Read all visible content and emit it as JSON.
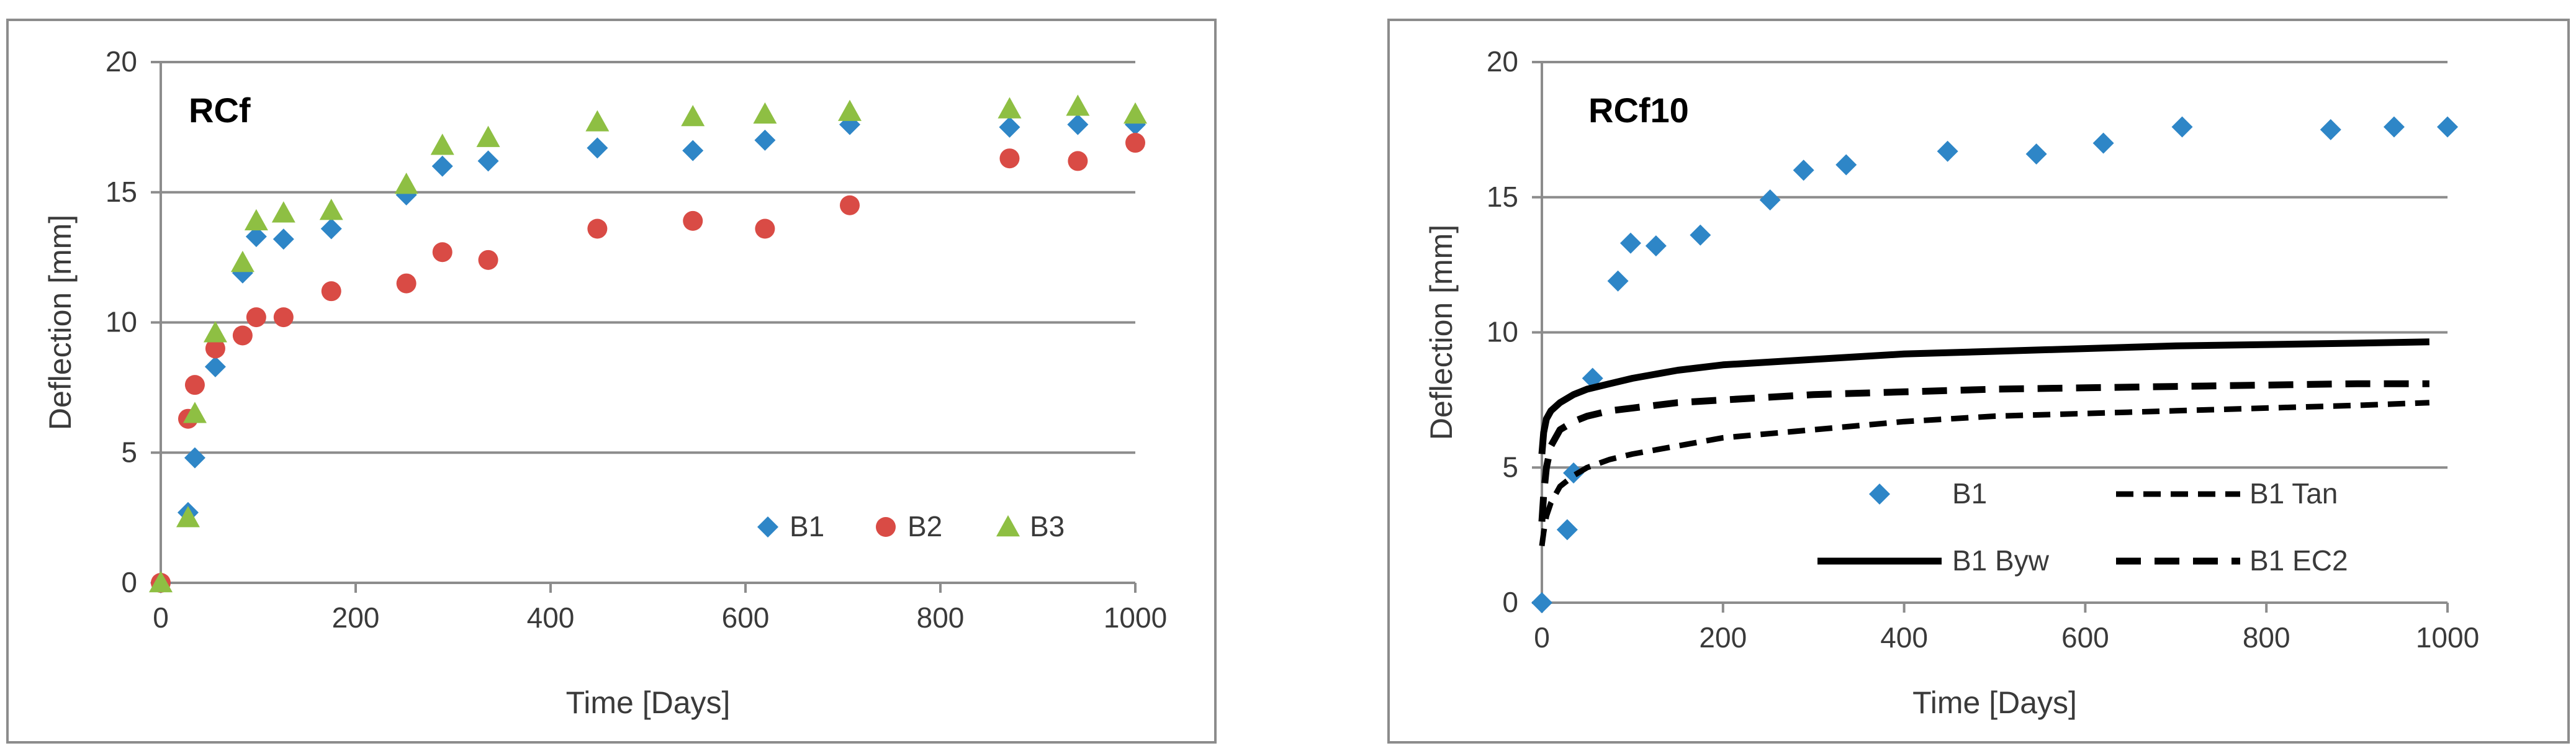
{
  "colors": {
    "B1": "#2e86c7",
    "B2": "#d94b45",
    "B3": "#8ebf43",
    "grid": "#8c8c8c",
    "text": "#3a3a3a",
    "model": "#000000"
  },
  "chart_data": [
    {
      "type": "scatter",
      "title": "RCf",
      "xlabel": "Time [Days]",
      "ylabel": "Deflection [mm]",
      "xlim": [
        0,
        1000
      ],
      "ylim": [
        0,
        20
      ],
      "xticks": [
        "0",
        "200",
        "400",
        "600",
        "800",
        "1000"
      ],
      "yticks": [
        "0",
        "5",
        "10",
        "15",
        "20"
      ],
      "legend_position": "bottom-right",
      "series": [
        {
          "name": "B1",
          "marker": "diamond",
          "color": "#2e86c7",
          "x": [
            0,
            28,
            35,
            56,
            84,
            98,
            126,
            175,
            252,
            289,
            336,
            448,
            546,
            620,
            707,
            871,
            941,
            1000
          ],
          "y": [
            0,
            2.7,
            4.8,
            8.3,
            11.9,
            13.3,
            13.2,
            13.6,
            14.9,
            16.0,
            16.2,
            16.7,
            16.6,
            17.0,
            17.6,
            17.5,
            17.6,
            17.6
          ]
        },
        {
          "name": "B2",
          "marker": "circle",
          "color": "#d94b45",
          "x": [
            0,
            28,
            35,
            56,
            84,
            98,
            126,
            175,
            252,
            289,
            336,
            448,
            546,
            620,
            707,
            871,
            941,
            1000
          ],
          "y": [
            0,
            6.3,
            7.6,
            9.0,
            9.5,
            10.2,
            10.2,
            11.2,
            11.5,
            12.7,
            12.4,
            13.6,
            13.9,
            13.6,
            14.5,
            16.3,
            16.2,
            16.9
          ]
        },
        {
          "name": "B3",
          "marker": "triangle",
          "color": "#8ebf43",
          "x": [
            0,
            28,
            35,
            56,
            84,
            98,
            126,
            175,
            252,
            289,
            336,
            448,
            546,
            620,
            707,
            871,
            941,
            1000
          ],
          "y": [
            0,
            2.5,
            6.5,
            9.6,
            12.3,
            13.9,
            14.2,
            14.3,
            15.3,
            16.8,
            17.1,
            17.7,
            17.9,
            18.0,
            18.1,
            18.2,
            18.3,
            18.0
          ]
        }
      ]
    },
    {
      "type": "scatter",
      "title": "RCf10",
      "xlabel": "Time [Days]",
      "ylabel": "Deflection [mm]",
      "xlim": [
        0,
        1000
      ],
      "ylim": [
        0,
        20
      ],
      "xticks": [
        "0",
        "200",
        "400",
        "600",
        "800",
        "1000"
      ],
      "yticks": [
        "0",
        "5",
        "10",
        "15",
        "20"
      ],
      "legend_position": "bottom-right",
      "series": [
        {
          "name": "B1",
          "marker": "diamond",
          "color": "#2e86c7",
          "x": [
            0,
            28,
            35,
            56,
            84,
            98,
            126,
            175,
            252,
            289,
            336,
            448,
            546,
            620,
            707,
            871,
            941,
            1000
          ],
          "y": [
            0,
            2.7,
            4.8,
            8.3,
            11.9,
            13.3,
            13.2,
            13.6,
            14.9,
            16.0,
            16.2,
            16.7,
            16.6,
            17.0,
            17.6,
            17.5,
            17.6,
            17.6
          ]
        },
        {
          "name": "B1 Tan",
          "style": "dashed",
          "color": "#000000",
          "x": [
            0,
            2,
            5,
            10,
            20,
            35,
            50,
            75,
            100,
            150,
            200,
            300,
            400,
            500,
            600,
            700,
            800,
            900,
            980
          ],
          "y": [
            2.1,
            2.6,
            3.2,
            3.7,
            4.3,
            4.7,
            5.0,
            5.3,
            5.5,
            5.8,
            6.1,
            6.4,
            6.7,
            6.9,
            7.0,
            7.1,
            7.2,
            7.3,
            7.4
          ]
        },
        {
          "name": "B1 Byw",
          "style": "solid",
          "color": "#000000",
          "x": [
            0,
            2,
            5,
            10,
            20,
            35,
            50,
            75,
            100,
            150,
            200,
            300,
            400,
            500,
            600,
            700,
            800,
            900,
            980
          ],
          "y": [
            5.5,
            6.3,
            6.8,
            7.1,
            7.4,
            7.7,
            7.9,
            8.1,
            8.3,
            8.6,
            8.8,
            9.0,
            9.2,
            9.3,
            9.4,
            9.5,
            9.55,
            9.6,
            9.65
          ]
        },
        {
          "name": "B1 EC2",
          "style": "dashed-bold",
          "color": "#000000",
          "x": [
            0,
            2,
            5,
            10,
            20,
            35,
            50,
            75,
            100,
            150,
            200,
            300,
            400,
            500,
            600,
            700,
            800,
            900,
            980
          ],
          "y": [
            3.0,
            4.0,
            5.0,
            5.8,
            6.4,
            6.7,
            6.9,
            7.1,
            7.2,
            7.4,
            7.5,
            7.7,
            7.8,
            7.9,
            7.95,
            8.0,
            8.05,
            8.1,
            8.1
          ]
        }
      ]
    }
  ]
}
